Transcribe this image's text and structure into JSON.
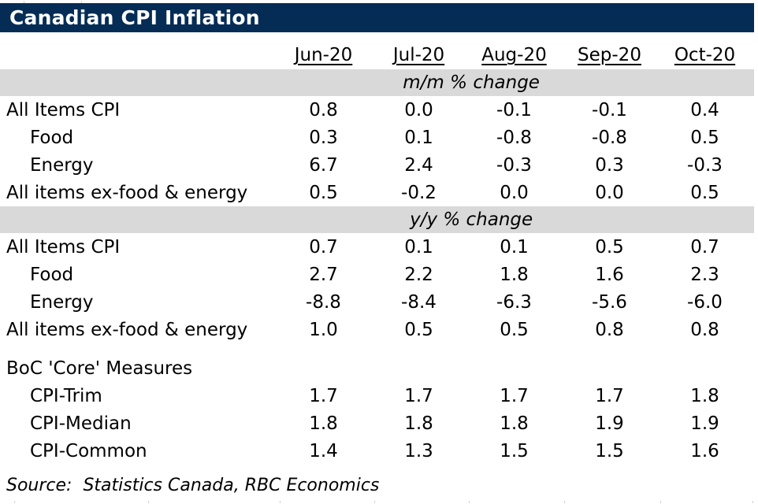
{
  "title": "Canadian CPI Inflation",
  "source_line": "Source:  Statistics Canada, RBC Economics",
  "colors": {
    "navy": "#052c55",
    "band_gray": "#d9d9d9",
    "text": "#000000",
    "title_text": "#ffffff"
  },
  "chart_data": {
    "type": "table",
    "title": "Canadian CPI Inflation",
    "columns": [
      "Jun-20",
      "Jul-20",
      "Aug-20",
      "Sep-20",
      "Oct-20"
    ],
    "sections": [
      {
        "band_label": "m/m % change",
        "rows": [
          {
            "label": "All Items CPI",
            "indent": false,
            "values": [
              "0.8",
              "0.0",
              "-0.1",
              "-0.1",
              "0.4"
            ]
          },
          {
            "label": "Food",
            "indent": true,
            "values": [
              "0.3",
              "0.1",
              "-0.8",
              "-0.8",
              "0.5"
            ]
          },
          {
            "label": "Energy",
            "indent": true,
            "values": [
              "6.7",
              "2.4",
              "-0.3",
              "0.3",
              "-0.3"
            ]
          },
          {
            "label": "All items ex-food & energy",
            "indent": false,
            "values": [
              "0.5",
              "-0.2",
              "0.0",
              "0.0",
              "0.5"
            ]
          }
        ]
      },
      {
        "band_label": "y/y % change",
        "rows": [
          {
            "label": "All Items CPI",
            "indent": false,
            "values": [
              "0.7",
              "0.1",
              "0.1",
              "0.5",
              "0.7"
            ]
          },
          {
            "label": "Food",
            "indent": true,
            "values": [
              "2.7",
              "2.2",
              "1.8",
              "1.6",
              "2.3"
            ]
          },
          {
            "label": "Energy",
            "indent": true,
            "values": [
              "-8.8",
              "-8.4",
              "-6.3",
              "-5.6",
              "-6.0"
            ]
          },
          {
            "label": "All items ex-food & energy",
            "indent": false,
            "values": [
              "1.0",
              "0.5",
              "0.5",
              "0.8",
              "0.8"
            ]
          }
        ]
      },
      {
        "band_label": null,
        "group_label": "BoC 'Core' Measures",
        "rows": [
          {
            "label": "CPI-Trim",
            "indent": true,
            "values": [
              "1.7",
              "1.7",
              "1.7",
              "1.7",
              "1.8"
            ]
          },
          {
            "label": "CPI-Median",
            "indent": true,
            "values": [
              "1.8",
              "1.8",
              "1.8",
              "1.9",
              "1.9"
            ]
          },
          {
            "label": "CPI-Common",
            "indent": true,
            "values": [
              "1.4",
              "1.3",
              "1.5",
              "1.5",
              "1.6"
            ]
          }
        ]
      }
    ],
    "source": "Source:  Statistics Canada, RBC Economics"
  }
}
